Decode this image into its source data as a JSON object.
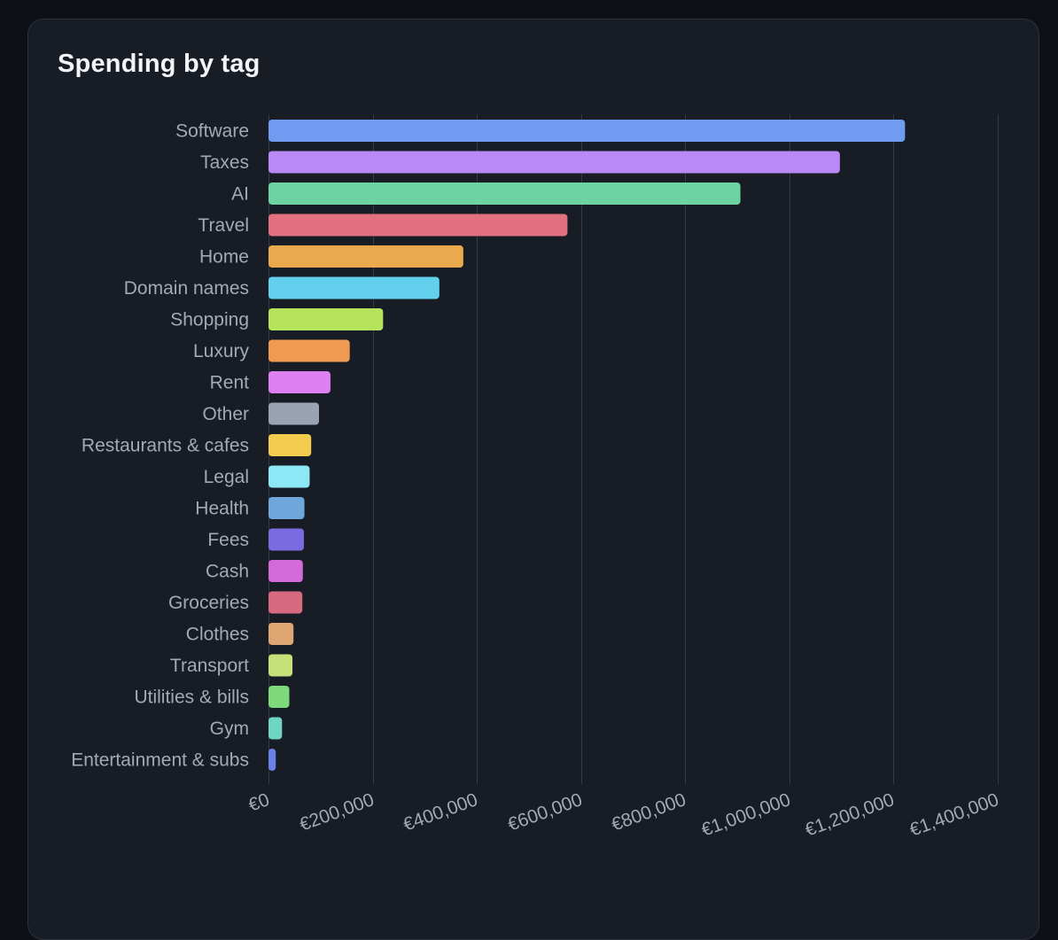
{
  "card": {
    "title": "Spending by tag"
  },
  "colors": {
    "page_background": "#0d1117",
    "card_background": "#181c25",
    "gridline": "#343a46",
    "tick_text": "#a3a9b5"
  },
  "chart_data": {
    "type": "bar",
    "orientation": "horizontal",
    "title": "Spending by tag",
    "xlabel": "",
    "ylabel": "",
    "currency_prefix": "€",
    "xlim": [
      0,
      1400000
    ],
    "grid": true,
    "categories": [
      "Software",
      "Taxes",
      "AI",
      "Travel",
      "Home",
      "Domain names",
      "Shopping",
      "Luxury",
      "Rent",
      "Other",
      "Restaurants & cafes",
      "Legal",
      "Health",
      "Fees",
      "Cash",
      "Groceries",
      "Clothes",
      "Transport",
      "Utilities & bills",
      "Gym",
      "Entertainment & subs"
    ],
    "values": [
      1222000,
      1097000,
      906000,
      574000,
      374000,
      328000,
      220000,
      156000,
      119000,
      97000,
      82000,
      79000,
      69000,
      68000,
      66000,
      65000,
      48000,
      46000,
      40000,
      26000,
      14000
    ],
    "bar_colors": [
      "#6f9cf0",
      "#b98af5",
      "#6dd3a0",
      "#e2707e",
      "#eba94e",
      "#62d0ec",
      "#b6e35c",
      "#ef9a52",
      "#dd80f2",
      "#9aa3b2",
      "#f3cc4e",
      "#8ce8f5",
      "#6fa7da",
      "#7b6be0",
      "#d36ad8",
      "#d86a7f",
      "#dea672",
      "#c6e07a",
      "#7ed87c",
      "#6dd6c3",
      "#6a82e8"
    ],
    "x_ticks": [
      {
        "value": 0,
        "label": "€0"
      },
      {
        "value": 200000,
        "label": "€200,000"
      },
      {
        "value": 400000,
        "label": "€400,000"
      },
      {
        "value": 600000,
        "label": "€600,000"
      },
      {
        "value": 800000,
        "label": "€800,000"
      },
      {
        "value": 1000000,
        "label": "€1,000,000"
      },
      {
        "value": 1200000,
        "label": "€1,200,000"
      },
      {
        "value": 1400000,
        "label": "€1,400,000"
      }
    ]
  }
}
